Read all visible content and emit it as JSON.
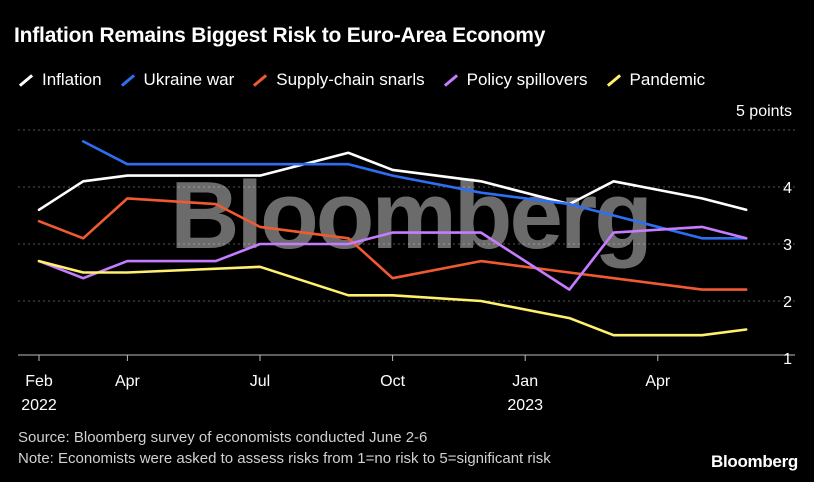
{
  "title": "Inflation Remains Biggest Risk to Euro-Area Economy",
  "source": "Source: Bloomberg survey of economists conducted June 2-6",
  "note": "Note: Economists were asked to assess risks from 1=no risk to 5=significant risk",
  "brand": "Bloomberg",
  "watermark": "Bloomberg",
  "colors": {
    "background": "#000000",
    "grid": "#555555",
    "Inflation": "#ffffff",
    "Ukraine war": "#2d6ff2",
    "Supply-chain snarls": "#f05a32",
    "Policy spillovers": "#c67cff",
    "Pandemic": "#fff06e"
  },
  "chart_data": {
    "type": "line",
    "title": "Inflation Remains Biggest Risk to Euro-Area Economy",
    "ylabel": "5 points",
    "ylim": [
      1,
      5
    ],
    "yticks": [
      1,
      2,
      3,
      4
    ],
    "y_unit_label": "5 points",
    "x_ticks": [
      {
        "month": 0,
        "label": "Feb",
        "sublabel": "2022"
      },
      {
        "month": 2,
        "label": "Apr",
        "sublabel": ""
      },
      {
        "month": 5,
        "label": "Jul",
        "sublabel": ""
      },
      {
        "month": 8,
        "label": "Oct",
        "sublabel": ""
      },
      {
        "month": 11,
        "label": "Jan",
        "sublabel": "2023"
      },
      {
        "month": 14,
        "label": "Apr",
        "sublabel": ""
      }
    ],
    "legend_position": "top",
    "grid": true,
    "series": [
      {
        "name": "Inflation",
        "x": [
          0,
          1,
          2,
          5,
          7,
          8,
          10,
          12,
          13,
          15,
          16
        ],
        "y": [
          3.6,
          4.1,
          4.2,
          4.2,
          4.6,
          4.3,
          4.1,
          3.7,
          4.1,
          3.8,
          3.6
        ]
      },
      {
        "name": "Ukraine war",
        "x": [
          1,
          2,
          5,
          7,
          8,
          10,
          12,
          13,
          15,
          16
        ],
        "y": [
          4.8,
          4.4,
          4.4,
          4.4,
          4.2,
          3.9,
          3.7,
          3.5,
          3.1,
          3.1
        ]
      },
      {
        "name": "Supply-chain snarls",
        "x": [
          0,
          1,
          2,
          4,
          5,
          7,
          8,
          10,
          12,
          13,
          15,
          16
        ],
        "y": [
          3.4,
          3.1,
          3.8,
          3.7,
          3.3,
          3.1,
          2.4,
          2.7,
          2.5,
          2.4,
          2.2,
          2.2
        ]
      },
      {
        "name": "Policy spillovers",
        "x": [
          0,
          1,
          2,
          4,
          5,
          7,
          8,
          10,
          12,
          13,
          15,
          16
        ],
        "y": [
          2.7,
          2.4,
          2.7,
          2.7,
          3.0,
          3.0,
          3.2,
          3.2,
          2.2,
          3.2,
          3.3,
          3.1
        ]
      },
      {
        "name": "Pandemic",
        "x": [
          0,
          1,
          2,
          5,
          7,
          8,
          10,
          12,
          13,
          15,
          16
        ],
        "y": [
          2.7,
          2.5,
          2.5,
          2.6,
          2.1,
          2.1,
          2.0,
          1.7,
          1.4,
          1.4,
          1.5
        ]
      }
    ]
  }
}
